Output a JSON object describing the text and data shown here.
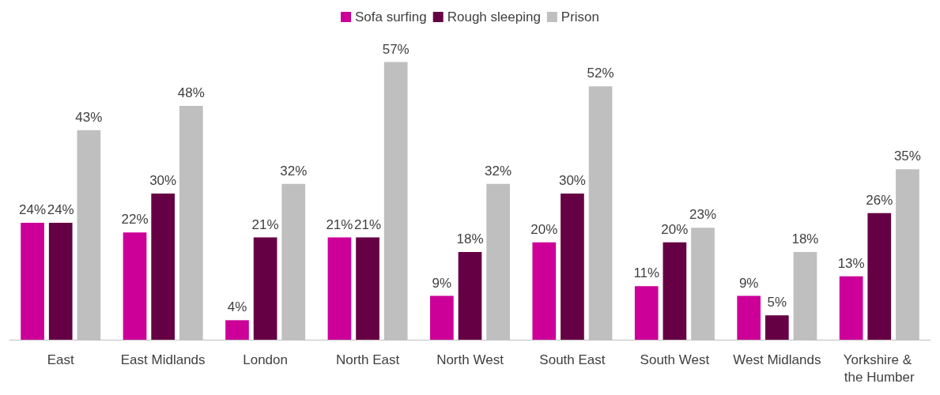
{
  "chart_data": {
    "type": "bar",
    "categories": [
      "East",
      "East Midlands",
      "London",
      "North East",
      "North West",
      "South East",
      "South West",
      "West Midlands",
      "Yorkshire & the Humber"
    ],
    "series": [
      {
        "name": "Sofa surfing",
        "color": "#cc0099",
        "values": [
          24,
          22,
          4,
          21,
          9,
          20,
          11,
          9,
          13
        ],
        "value_labels": [
          "24%",
          "22%",
          "4%",
          "21%",
          "9%",
          "20%",
          "11%",
          "9%",
          "13%"
        ]
      },
      {
        "name": "Rough sleeping",
        "color": "#660044",
        "values": [
          24,
          30,
          21,
          21,
          18,
          30,
          20,
          5,
          26
        ],
        "value_labels": [
          "24%",
          "30%",
          "21%",
          "21%",
          "18%",
          "30%",
          "20%",
          "5%",
          "26%"
        ]
      },
      {
        "name": "Prison",
        "color": "#bfbfbf",
        "values": [
          43,
          48,
          32,
          57,
          32,
          52,
          23,
          18,
          35
        ],
        "value_labels": [
          "43%",
          "48%",
          "32%",
          "57%",
          "32%",
          "52%",
          "23%",
          "18%",
          "35%"
        ]
      }
    ],
    "legend": "top"
  }
}
